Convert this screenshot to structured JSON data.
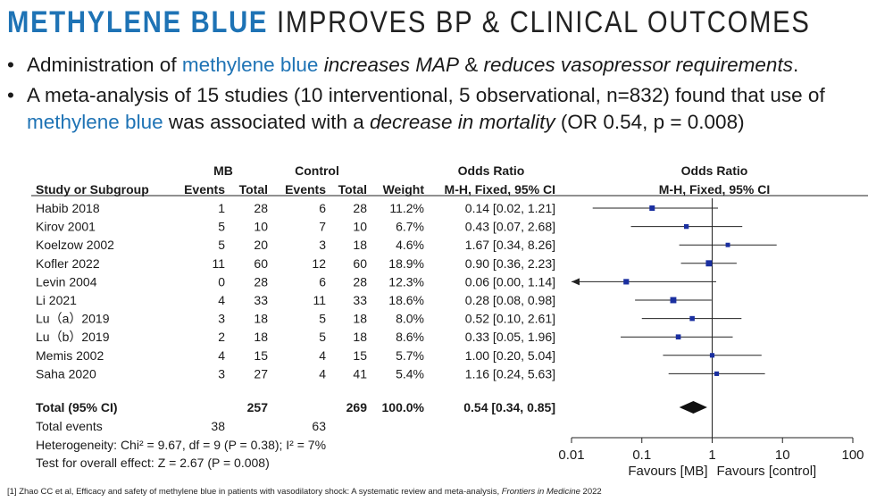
{
  "title": {
    "highlight": "METHYLENE BLUE",
    "rest": "IMPROVES BP & CLINICAL OUTCOMES"
  },
  "bullet1": {
    "marker": "•",
    "pre": "Administration of ",
    "blue": "methylene blue",
    "sp1": " ",
    "it1": "increases MAP",
    "mid": " & ",
    "it2": "reduces vasopressor requirements",
    "end": "."
  },
  "bullet2": {
    "marker": "•",
    "pre": "A ",
    "strong": "meta-analysis of 15 studies",
    "mid1": " (10 interventional, 5 observational, n=832) found that use of ",
    "blue": "methylene blue",
    "mid2": " was associated with a ",
    "it": "decrease in mortality",
    "end": " (OR 0.54, p = 0.008)"
  },
  "chart_data": {
    "type": "forest",
    "headers": {
      "mb_group": "MB",
      "control_group": "Control",
      "or_col": "Odds Ratio",
      "plot_col": "Odds Ratio",
      "study": "Study or Subgroup",
      "events": "Events",
      "total": "Total",
      "events2": "Events",
      "total2": "Total",
      "weight": "Weight",
      "method": "M-H, Fixed, 95% CI",
      "method2": "M-H, Fixed, 95% CI"
    },
    "studies": [
      {
        "study": "Habib 2018",
        "mb_events": "1",
        "mb_total": "28",
        "c_events": "6",
        "c_total": "28",
        "weight": "11.2%",
        "ci_text": "0.14 [0.02, 1.21]",
        "or": 0.14,
        "lo": 0.02,
        "hi": 1.21
      },
      {
        "study": "Kirov 2001",
        "mb_events": "5",
        "mb_total": "10",
        "c_events": "7",
        "c_total": "10",
        "weight": "6.7%",
        "ci_text": "0.43 [0.07, 2.68]",
        "or": 0.43,
        "lo": 0.07,
        "hi": 2.68
      },
      {
        "study": "Koelzow 2002",
        "mb_events": "5",
        "mb_total": "20",
        "c_events": "3",
        "c_total": "18",
        "weight": "4.6%",
        "ci_text": "1.67 [0.34, 8.26]",
        "or": 1.67,
        "lo": 0.34,
        "hi": 8.26
      },
      {
        "study": "Kofler 2022",
        "mb_events": "11",
        "mb_total": "60",
        "c_events": "12",
        "c_total": "60",
        "weight": "18.9%",
        "ci_text": "0.90 [0.36, 2.23]",
        "or": 0.9,
        "lo": 0.36,
        "hi": 2.23
      },
      {
        "study": "Levin 2004",
        "mb_events": "0",
        "mb_total": "28",
        "c_events": "6",
        "c_total": "28",
        "weight": "12.3%",
        "ci_text": "0.06 [0.00, 1.14]",
        "or": 0.06,
        "lo": 0.0,
        "hi": 1.14
      },
      {
        "study": "Li 2021",
        "mb_events": "4",
        "mb_total": "33",
        "c_events": "11",
        "c_total": "33",
        "weight": "18.6%",
        "ci_text": "0.28 [0.08, 0.98]",
        "or": 0.28,
        "lo": 0.08,
        "hi": 0.98
      },
      {
        "study": "Lu（a）2019",
        "mb_events": "3",
        "mb_total": "18",
        "c_events": "5",
        "c_total": "18",
        "weight": "8.0%",
        "ci_text": "0.52 [0.10, 2.61]",
        "or": 0.52,
        "lo": 0.1,
        "hi": 2.61
      },
      {
        "study": "Lu（b）2019",
        "mb_events": "2",
        "mb_total": "18",
        "c_events": "5",
        "c_total": "18",
        "weight": "8.6%",
        "ci_text": "0.33 [0.05, 1.96]",
        "or": 0.33,
        "lo": 0.05,
        "hi": 1.96
      },
      {
        "study": "Memis 2002",
        "mb_events": "4",
        "mb_total": "15",
        "c_events": "4",
        "c_total": "15",
        "weight": "5.7%",
        "ci_text": "1.00 [0.20, 5.04]",
        "or": 1.0,
        "lo": 0.2,
        "hi": 5.04
      },
      {
        "study": "Saha 2020",
        "mb_events": "3",
        "mb_total": "27",
        "c_events": "4",
        "c_total": "41",
        "weight": "5.4%",
        "ci_text": "1.16 [0.24, 5.63]",
        "or": 1.16,
        "lo": 0.24,
        "hi": 5.63
      }
    ],
    "total": {
      "label": "Total (95% CI)",
      "mb_total": "257",
      "c_total": "269",
      "weight": "100.0%",
      "ci_text": "0.54 [0.34, 0.85]",
      "or": 0.54,
      "lo": 0.34,
      "hi": 0.85
    },
    "total_events": {
      "label": "Total events",
      "mb": "38",
      "c": "63"
    },
    "heterogeneity": "Heterogeneity: Chi² = 9.67, df = 9 (P = 0.38); I² = 7%",
    "overall_effect": "Test for overall effect: Z = 2.67 (P = 0.008)",
    "x_ticks": [
      {
        "v": 0.01,
        "label": "0.01"
      },
      {
        "v": 0.1,
        "label": "0.1"
      },
      {
        "v": 1,
        "label": "1"
      },
      {
        "v": 10,
        "label": "10"
      },
      {
        "v": 100,
        "label": "100"
      }
    ],
    "x_scale": "log",
    "xlim": [
      0.01,
      100
    ],
    "favours_left": "Favours [MB]",
    "favours_right": "Favours [control]"
  },
  "footnote": {
    "pre": "[1] Zhao CC et al, Efficacy and safety of methylene blue in patients with vasodilatory shock: A systematic review and meta-analysis, ",
    "journal": "Frontiers in Medicine",
    "year": " 2022"
  }
}
